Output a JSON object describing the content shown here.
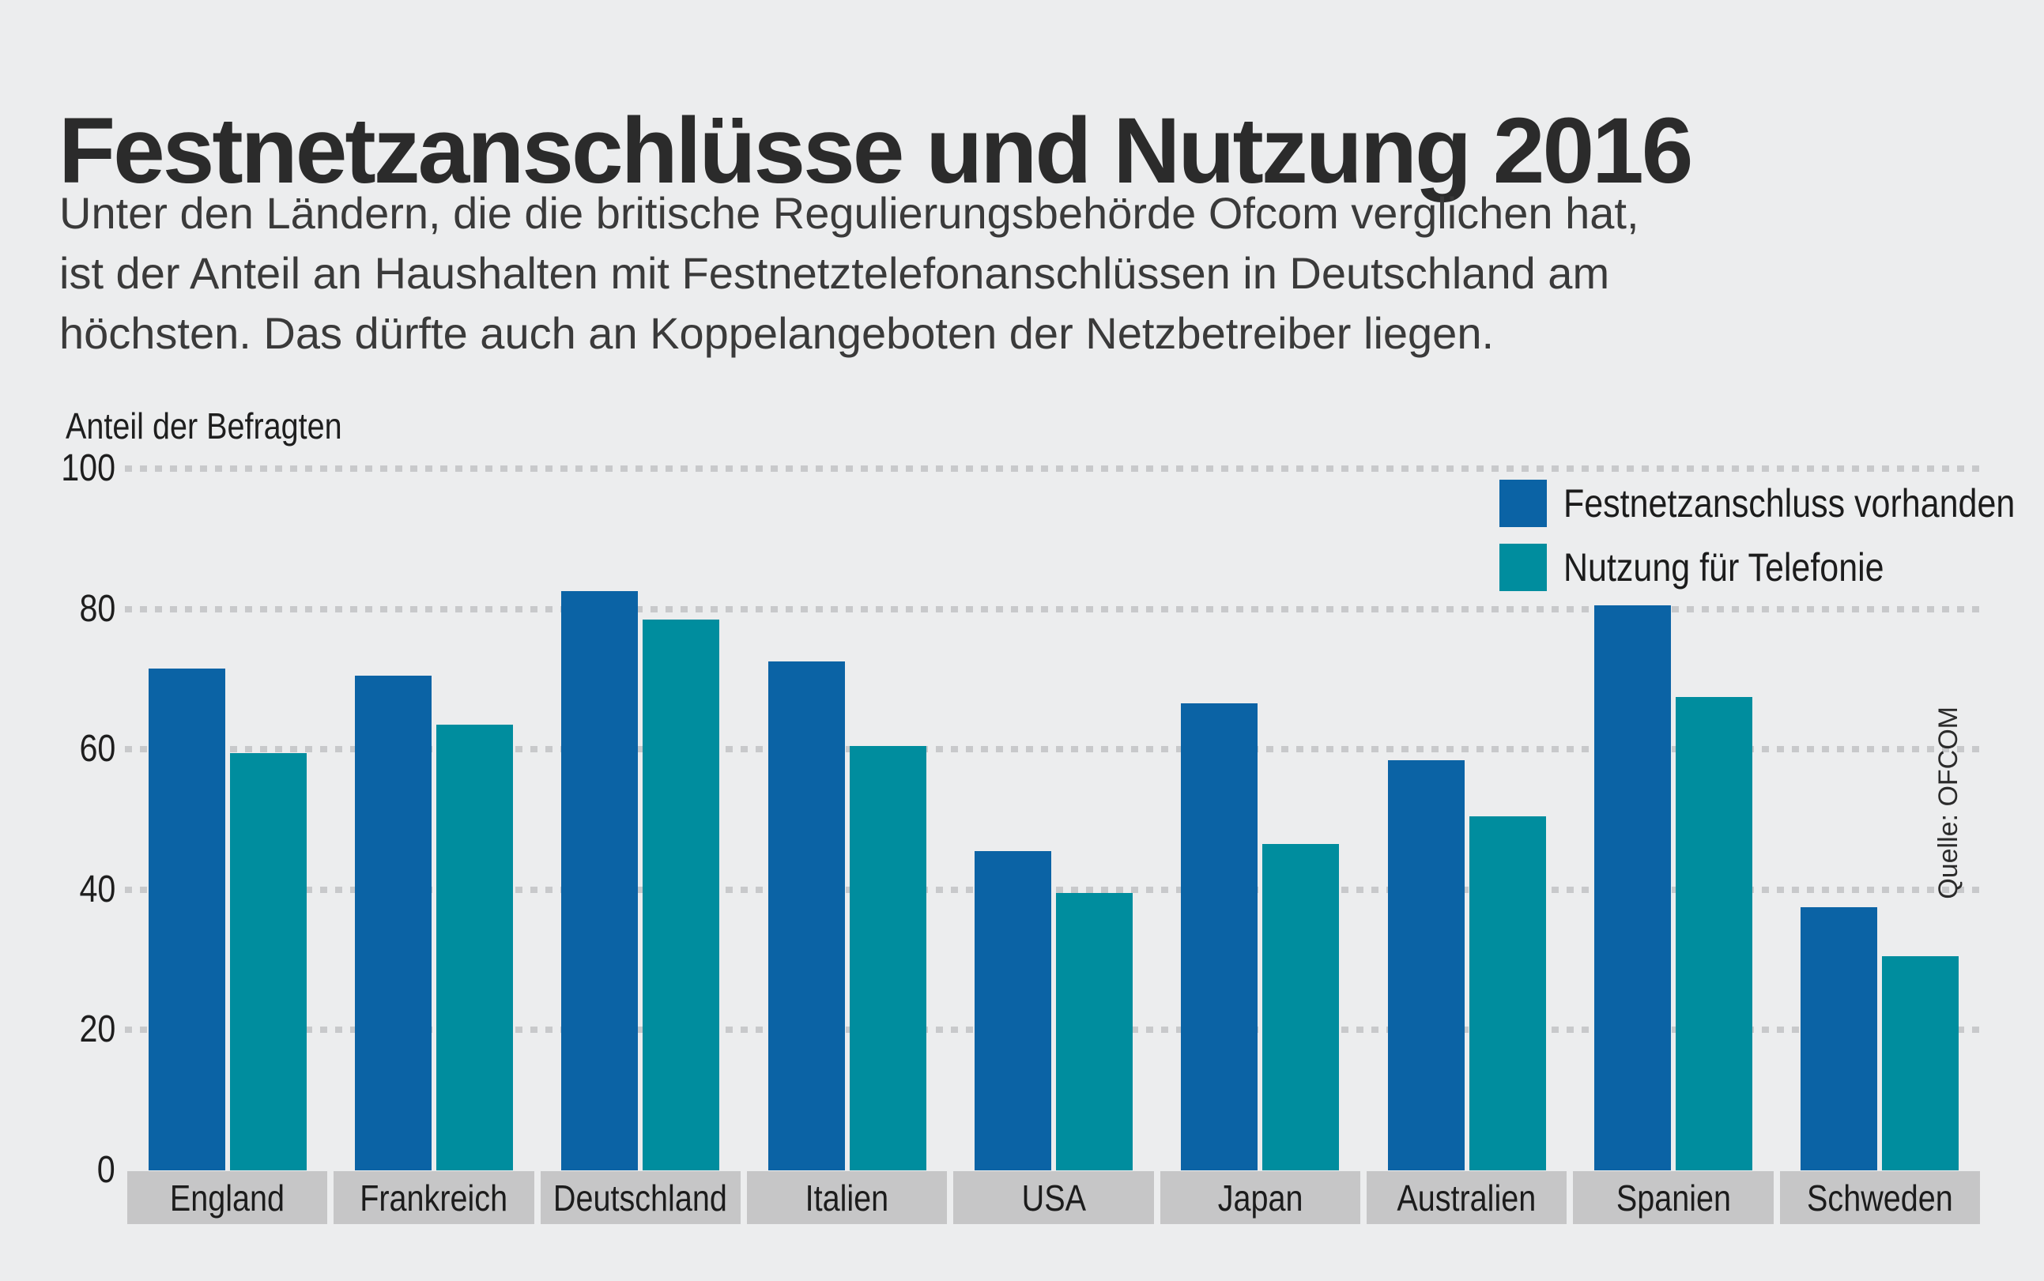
{
  "header": {
    "title": "Festnetzanschlüsse und Nutzung 2016",
    "description_lines": [
      "Unter den Ländern, die die britische Regulierungsbehörde Ofcom verglichen hat,",
      "ist der Anteil an Haushalten mit Festnetztelefonanschlüssen in Deutschland am",
      "höchsten. Das dürfte auch an Koppelangeboten der Netzbetreiber liegen."
    ]
  },
  "axis": {
    "label": "Anteil der Befragten",
    "ticks": [
      100,
      80,
      60,
      40,
      20,
      0
    ]
  },
  "legend": {
    "items": [
      {
        "label": "Festnetzanschluss vorhanden",
        "color": "#0B63A5"
      },
      {
        "label": "Nutzung für Telefonie",
        "color": "#008D9E"
      }
    ]
  },
  "source": {
    "text": "Quelle: OFCOM"
  },
  "colors": {
    "background": "#ecedee",
    "bar_blue": "#0B63A5",
    "bar_teal": "#008D9E",
    "category_band": "#c6c6c7",
    "gridline": "#c8c9cb",
    "text_dark": "#2b2b2b"
  },
  "chart_data": {
    "type": "bar",
    "title": "Festnetzanschlüsse und Nutzung 2016",
    "categories": [
      "England",
      "Frankreich",
      "Deutschland",
      "Italien",
      "USA",
      "Japan",
      "Australien",
      "Spanien",
      "Schweden"
    ],
    "series": [
      {
        "name": "Festnetzanschluss vorhanden",
        "color": "#0B63A5",
        "values": [
          71.5,
          70.5,
          82.5,
          72.5,
          45.5,
          66.5,
          58.5,
          80.5,
          37.5
        ]
      },
      {
        "name": "Nutzung für Telefonie",
        "color": "#008D9E",
        "values": [
          59.5,
          63.5,
          78.5,
          60.5,
          39.5,
          46.5,
          50.5,
          67.5,
          30.5
        ]
      }
    ],
    "xlabel": "",
    "ylabel": "Anteil der Befragten",
    "ylim": [
      0,
      100
    ],
    "yticks": [
      0,
      20,
      40,
      60,
      80,
      100
    ],
    "grid": "horizontal-dashed",
    "legend_position": "top-right"
  }
}
